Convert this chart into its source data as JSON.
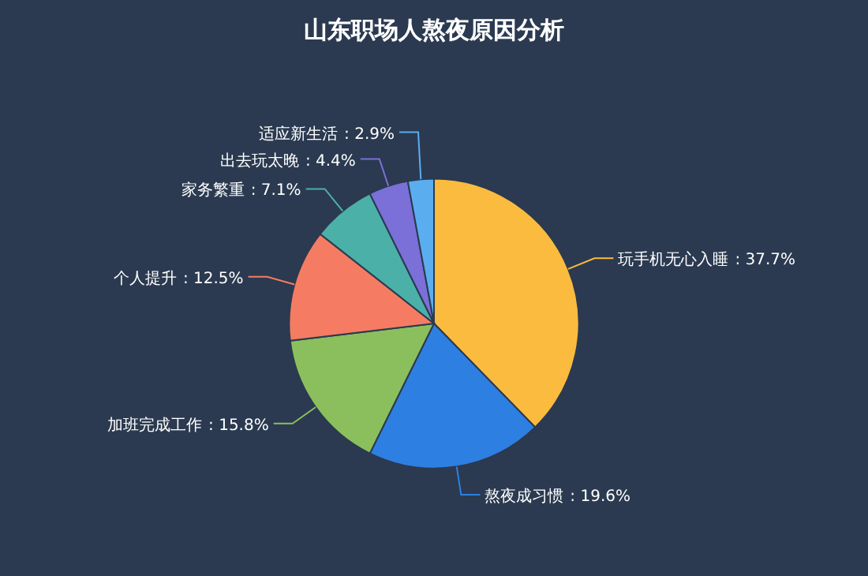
{
  "chart_data": {
    "type": "pie",
    "title": "山东职场人熬夜原因分析",
    "categories": [
      "玩手机无心入睡",
      "熬夜成习惯",
      "加班完成工作",
      "个人提升",
      "家务繁重",
      "出去玩太晚",
      "适应新生活"
    ],
    "values": [
      37.7,
      19.6,
      15.8,
      12.5,
      7.1,
      4.4,
      2.9
    ],
    "colors": [
      "#fbbb3f",
      "#2e7fe2",
      "#8bbf5d",
      "#f57c62",
      "#4bb0a8",
      "#7b6fd8",
      "#5aaef0"
    ],
    "value_labels": [
      ": 37.7%",
      ": 19.6%",
      ": 15.8%",
      ": 12.5%",
      ": 7.1%",
      ": 4.4%",
      ": 2.9%"
    ]
  }
}
